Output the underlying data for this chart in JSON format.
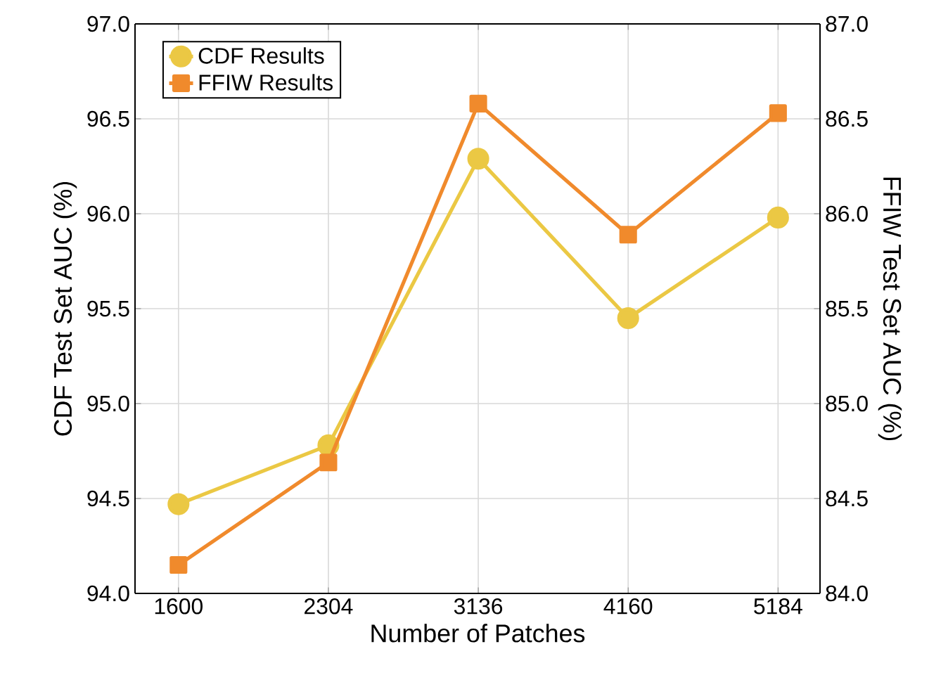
{
  "chart_data": {
    "type": "line",
    "xlabel": "Number of Patches",
    "ylabel": "CDF Test Set AUC (%)",
    "y2label": "FFIW Test Set AUC (%)",
    "categories": [
      "1600",
      "2304",
      "3136",
      "4160",
      "5184"
    ],
    "series": [
      {
        "name": "CDF Results",
        "color": "#ebc844",
        "marker": "circle",
        "values": [
          94.47,
          94.78,
          96.29,
          95.45,
          95.98
        ]
      },
      {
        "name": "FFIW Results",
        "color": "#f08a2c",
        "marker": "square",
        "axis": "y2",
        "values": [
          84.15,
          84.69,
          86.58,
          85.89,
          86.53
        ]
      }
    ],
    "ylim": [
      94.0,
      97.0
    ],
    "yticks": [
      {
        "value": 94.0,
        "label": "94.0"
      },
      94.5,
      {
        "value": 95.0,
        "label": "95.0"
      },
      95.5,
      {
        "value": 96.0,
        "label": "96.0"
      },
      96.5,
      {
        "value": 97.0,
        "label": "97.0"
      }
    ],
    "y2lim": [
      84.0,
      87.0
    ],
    "y2ticks": [
      {
        "value": 84.0,
        "label": "84.0"
      },
      84.5,
      {
        "value": 85.0,
        "label": "85.0"
      },
      85.5,
      {
        "value": 86.0,
        "label": "86.0"
      },
      86.5,
      {
        "value": 87.0,
        "label": "87.0"
      }
    ],
    "grid": true,
    "legend": "top left",
    "line_style": "solid"
  }
}
